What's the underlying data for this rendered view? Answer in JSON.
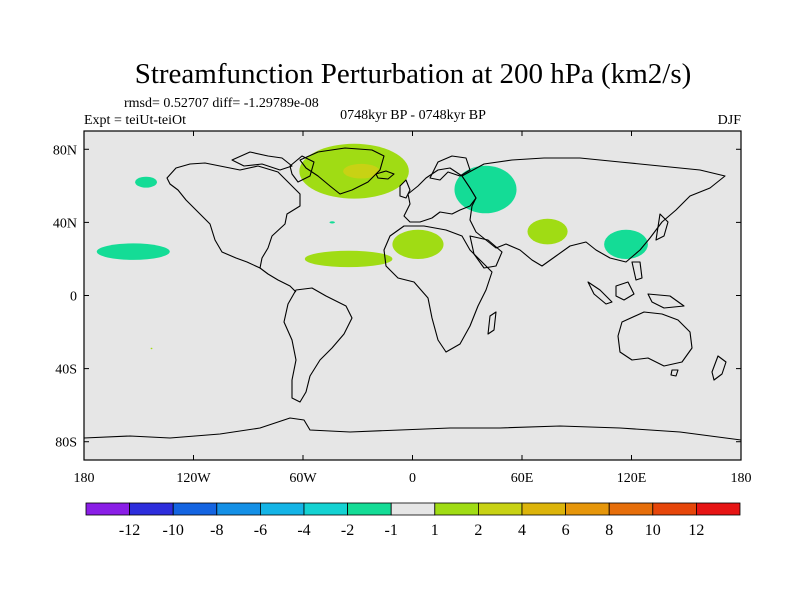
{
  "chart_data": {
    "type": "heatmap",
    "title": "Streamfunction Perturbation at 200 hPa (km2/s)",
    "stats_line": "rmsd= 0.52707 diff= -1.29789e-08",
    "experiment": "Expt = teiUt-teiOt",
    "period": "0748kyr BP - 0748kyr BP",
    "season": "DJF",
    "xlim": [
      -180,
      180
    ],
    "ylim": [
      -90,
      90
    ],
    "x_ticks": [
      {
        "value": -180,
        "label": "180"
      },
      {
        "value": -120,
        "label": "120W"
      },
      {
        "value": -60,
        "label": "60W"
      },
      {
        "value": 0,
        "label": "0"
      },
      {
        "value": 60,
        "label": "60E"
      },
      {
        "value": 120,
        "label": "120E"
      },
      {
        "value": 180,
        "label": "180"
      }
    ],
    "y_ticks": [
      {
        "value": 80,
        "label": "80N"
      },
      {
        "value": 40,
        "label": "40N"
      },
      {
        "value": 0,
        "label": "0"
      },
      {
        "value": -40,
        "label": "40S"
      },
      {
        "value": -80,
        "label": "80S"
      }
    ],
    "colorbar": {
      "colors": [
        "#8a1ee6",
        "#2d2ddc",
        "#1464e1",
        "#1490e6",
        "#14b4e6",
        "#14d2d2",
        "#14dc96",
        "#e6e6e6",
        "#a0dc14",
        "#c8d214",
        "#dcb40a",
        "#e6960a",
        "#e66e0a",
        "#e6460a",
        "#e61414"
      ],
      "labels": [
        "-12",
        "-10",
        "-8",
        "-6",
        "-4",
        "-2",
        "-1",
        "1",
        "2",
        "4",
        "6",
        "8",
        "10",
        "12"
      ]
    },
    "regions": [
      {
        "name": "north-atlantic-greenland",
        "lon": -32,
        "lat": 68,
        "rlon": 30,
        "rlat": 15,
        "class": "1 to 2",
        "color": "#a0dc14"
      },
      {
        "name": "greenland-core",
        "lon": -28,
        "lat": 68,
        "rlon": 10,
        "rlat": 4,
        "class": "2 to 4",
        "color": "#c8d214"
      },
      {
        "name": "alaska",
        "lon": -146,
        "lat": 62,
        "rlon": 6,
        "rlat": 3,
        "class": "-2 to -1",
        "color": "#14dc96"
      },
      {
        "name": "north-pacific",
        "lon": -153,
        "lat": 24,
        "rlon": 20,
        "rlat": 4.5,
        "class": "-2 to -1",
        "color": "#14dc96"
      },
      {
        "name": "atlantic-subtropics",
        "lon": -35,
        "lat": 20,
        "rlon": 24,
        "rlat": 4.5,
        "class": "1 to 2",
        "color": "#a0dc14"
      },
      {
        "name": "north-africa",
        "lon": 3,
        "lat": 28,
        "rlon": 14,
        "rlat": 8,
        "class": "1 to 2",
        "color": "#a0dc14"
      },
      {
        "name": "eastern-europe-russia",
        "lon": 40,
        "lat": 58,
        "rlon": 17,
        "rlat": 13,
        "class": "-2 to -1",
        "color": "#14dc96"
      },
      {
        "name": "central-asia",
        "lon": 74,
        "lat": 35,
        "rlon": 11,
        "rlat": 7,
        "class": "1 to 2",
        "color": "#a0dc14"
      },
      {
        "name": "east-asia",
        "lon": 117,
        "lat": 28,
        "rlon": 12,
        "rlat": 8,
        "class": "-2 to -1",
        "color": "#14dc96"
      },
      {
        "name": "north-atlantic-small",
        "lon": -44,
        "lat": 40,
        "rlon": 1.5,
        "rlat": 0.6,
        "class": "-2 to -1",
        "color": "#14dc96"
      },
      {
        "name": "south-pacific-spot",
        "lon": -143,
        "lat": -29,
        "rlon": 0.5,
        "rlat": 0.4,
        "class": "1 to 2",
        "color": "#a0dc14"
      }
    ]
  }
}
